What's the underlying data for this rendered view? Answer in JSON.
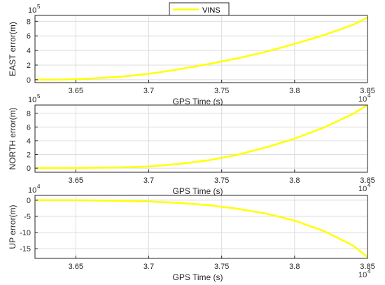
{
  "legend": {
    "label": "VINS",
    "color": "#ffff00"
  },
  "chart_data": [
    {
      "type": "line",
      "xlabel": "GPS Time (s)",
      "ylabel": "EAST error(m)",
      "x_exponent": "10",
      "x_exponent_power": "4",
      "y_exponent": "10",
      "y_exponent_power": "5",
      "xlim": [
        36220,
        38500
      ],
      "ylim": [
        -0.4,
        8.8
      ],
      "xticks": [
        36500,
        37000,
        37500,
        38000,
        38500
      ],
      "xtick_labels": [
        "3.65",
        "3.7",
        "3.75",
        "3.8",
        "3.85"
      ],
      "yticks": [
        0,
        2,
        4,
        6,
        8
      ],
      "ytick_labels": [
        "0",
        "2",
        "4",
        "6",
        "8"
      ],
      "grid": true,
      "series": [
        {
          "name": "VINS",
          "color": "#ffff00",
          "x": [
            36230,
            36400,
            36600,
            36800,
            37000,
            37200,
            37400,
            37600,
            37800,
            38000,
            38200,
            38400,
            38500
          ],
          "y": [
            0,
            0.02,
            0.15,
            0.4,
            0.8,
            1.4,
            2.1,
            2.9,
            3.8,
            4.9,
            6.1,
            7.5,
            8.5
          ]
        }
      ]
    },
    {
      "type": "line",
      "xlabel": "GPS Time (s)",
      "ylabel": "NORTH error(m)",
      "x_exponent": "10",
      "x_exponent_power": "4",
      "y_exponent": "10",
      "y_exponent_power": "5",
      "xlim": [
        36220,
        38500
      ],
      "ylim": [
        -0.6,
        9.2
      ],
      "xticks": [
        36500,
        37000,
        37500,
        38000,
        38500
      ],
      "xtick_labels": [
        "3.65",
        "3.7",
        "3.75",
        "3.8",
        "3.85"
      ],
      "yticks": [
        0,
        2,
        4,
        6,
        8
      ],
      "ytick_labels": [
        "0",
        "2",
        "4",
        "6",
        "8"
      ],
      "grid": true,
      "series": [
        {
          "name": "VINS",
          "color": "#ffff00",
          "x": [
            36230,
            36500,
            36800,
            37000,
            37200,
            37400,
            37600,
            37800,
            38000,
            38200,
            38400,
            38500
          ],
          "y": [
            0,
            0.02,
            0.1,
            0.25,
            0.6,
            1.1,
            1.9,
            3.0,
            4.3,
            5.9,
            7.9,
            9.2
          ]
        }
      ]
    },
    {
      "type": "line",
      "xlabel": "GPS Time (s)",
      "ylabel": "UP error(m)",
      "x_exponent": "10",
      "x_exponent_power": "4",
      "y_exponent": "10",
      "y_exponent_power": "4",
      "xlim": [
        36220,
        38500
      ],
      "ylim": [
        -18,
        1.5
      ],
      "xticks": [
        36500,
        37000,
        37500,
        38000,
        38500
      ],
      "xtick_labels": [
        "3.65",
        "3.7",
        "3.75",
        "3.8",
        "3.85"
      ],
      "yticks": [
        0,
        -5,
        -10,
        -15
      ],
      "ytick_labels": [
        "0",
        "-5",
        "-10",
        "-15"
      ],
      "grid": true,
      "series": [
        {
          "name": "VINS",
          "color": "#ffff00",
          "x": [
            36230,
            36500,
            36800,
            37000,
            37200,
            37400,
            37600,
            37800,
            38000,
            38200,
            38400,
            38500
          ],
          "y": [
            0,
            0,
            -0.2,
            -0.4,
            -0.8,
            -1.5,
            -2.6,
            -4.1,
            -6.3,
            -9.5,
            -14.0,
            -17.6
          ]
        }
      ]
    }
  ]
}
